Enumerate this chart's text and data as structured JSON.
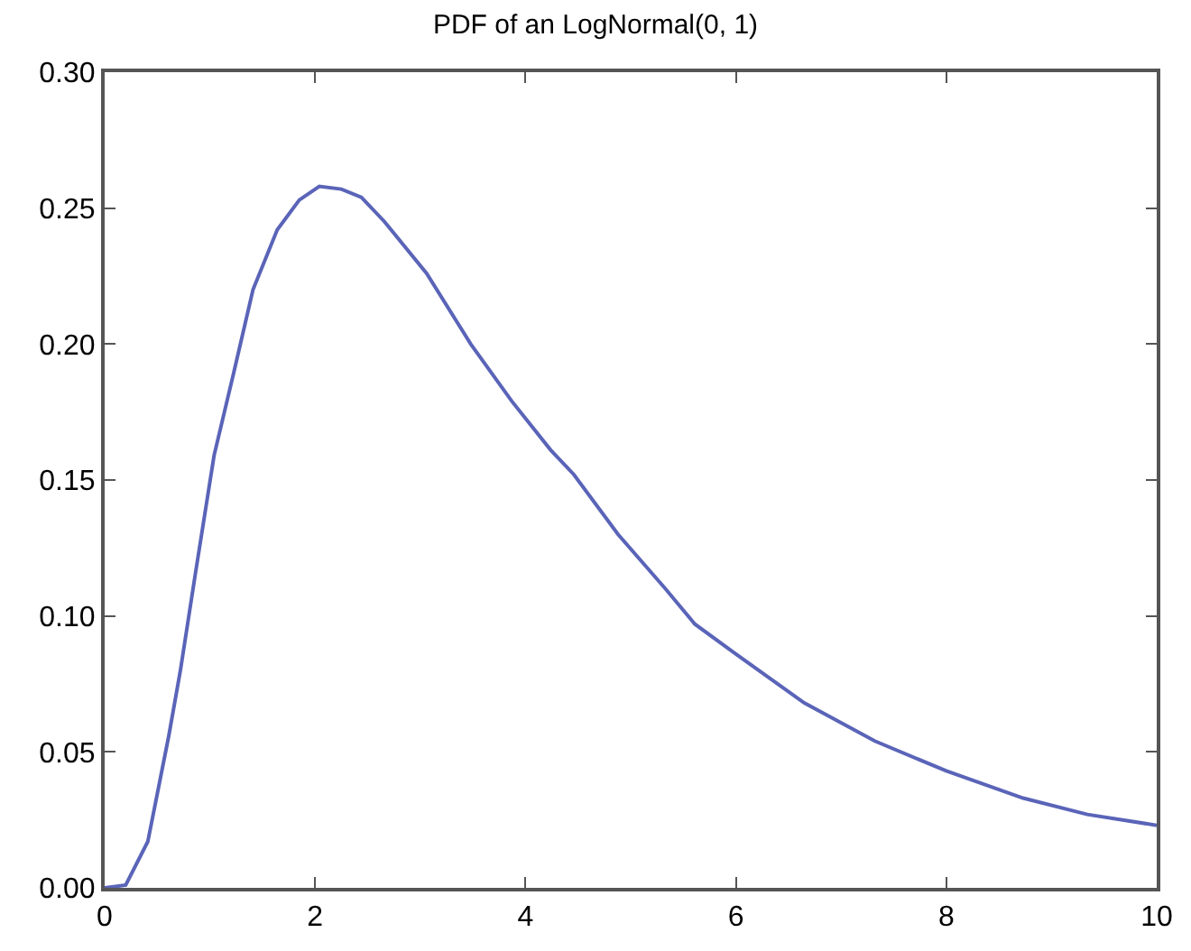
{
  "chart_data": {
    "type": "line",
    "title": "PDF of an LogNormal(0, 1)",
    "x": [
      0,
      0.2,
      0.41,
      0.61,
      0.72,
      0.86,
      1.04,
      1.23,
      1.41,
      1.64,
      1.85,
      2.04,
      2.25,
      2.44,
      2.66,
      3.06,
      3.48,
      3.87,
      4.24,
      4.46,
      4.88,
      5.33,
      5.61,
      6.0,
      6.65,
      7.32,
      8.0,
      8.73,
      9.34,
      10
    ],
    "series": [
      {
        "color": "#5a64b8",
        "values": [
          0,
          0.001,
          0.017,
          0.056,
          0.08,
          0.115,
          0.159,
          0.19,
          0.22,
          0.242,
          0.253,
          0.258,
          0.257,
          0.254,
          0.245,
          0.226,
          0.2,
          0.179,
          0.161,
          0.152,
          0.13,
          0.11,
          0.097,
          0.086,
          0.068,
          0.054,
          0.043,
          0.033,
          0.027,
          0.023
        ]
      }
    ],
    "xlim": [
      0,
      10
    ],
    "xticks": [
      0,
      2,
      4,
      6,
      8,
      10
    ],
    "ylim": [
      0,
      0.3
    ],
    "yticks": [
      {
        "value": 0,
        "label": "0.00"
      },
      {
        "value": 0.05,
        "label": "0.05"
      },
      {
        "value": 0.1,
        "label": "0.10"
      },
      {
        "value": 0.15,
        "label": "0.15"
      },
      {
        "value": 0.2,
        "label": "0.20"
      },
      {
        "value": 0.25,
        "label": "0.25"
      },
      {
        "value": 0.3,
        "label": "0.30"
      }
    ],
    "marker": "none",
    "line_style": "solid"
  }
}
